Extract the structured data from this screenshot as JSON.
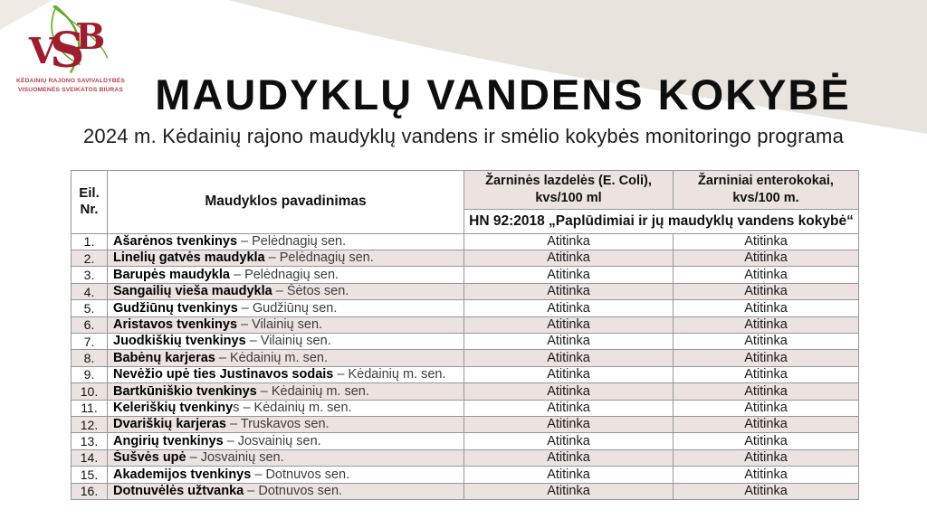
{
  "logo": {
    "monogram": "VSB",
    "org_line1": "KĖDAINIŲ RAJONO SAVIVALDYBĖS",
    "org_line2": "VISUOMENĖS SVEIKATOS BIURAS"
  },
  "header": {
    "title": "MAUDYKLŲ VANDENS KOKYBĖ",
    "subtitle": "2024 m. Kėdainių rajono maudyklų vandens ir smėlio kokybės monitoringo programa"
  },
  "table": {
    "columns": {
      "nr": "Eil.\nNr.",
      "name": "Maudyklos pavadinimas",
      "ecoli": "Žarninės lazdelės (E. Coli),\nkvs/100 ml",
      "entero": "Žarniniai enterokokai,\nkvs/100 m.",
      "subheader": "HN 92:2018 „Paplūdimiai ir jų maudyklų vandens kokybė“"
    },
    "rows": [
      {
        "nr": "1.",
        "name": "Ašarėnos tvenkinys",
        "rest": " – Pelėdnagių sen.",
        "ecoli": "Atitinka",
        "entero": "Atitinka"
      },
      {
        "nr": "2.",
        "name": "Linelių gatvės maudykla",
        "rest": " – Pelėdnagių sen.",
        "ecoli": "Atitinka",
        "entero": "Atitinka"
      },
      {
        "nr": "3.",
        "name": "Barupės maudykla",
        "rest": " – Pelėdnagių sen.",
        "ecoli": "Atitinka",
        "entero": "Atitinka"
      },
      {
        "nr": "4.",
        "name": "Sangailių vieša maudykla",
        "rest": " – Šėtos sen.",
        "ecoli": "Atitinka",
        "entero": "Atitinka"
      },
      {
        "nr": "5.",
        "name": "Gudžiūnų tvenkinys",
        "rest": " – Gudžiūnų sen.",
        "ecoli": "Atitinka",
        "entero": "Atitinka"
      },
      {
        "nr": "6.",
        "name": "Aristavos tvenkinys",
        "rest": " – Vilainių sen.",
        "ecoli": "Atitinka",
        "entero": "Atitinka"
      },
      {
        "nr": "7.",
        "name": "Juodkiškių tvenkinys",
        "rest": " – Vilainių sen.",
        "ecoli": "Atitinka",
        "entero": "Atitinka"
      },
      {
        "nr": "8.",
        "name": "Babėnų karjeras",
        "rest": " – Kėdainių m. sen.",
        "ecoli": "Atitinka",
        "entero": "Atitinka"
      },
      {
        "nr": "9.",
        "name": "Nevėžio upė ties Justinavos sodais",
        "rest": " – Kėdainių m. sen.",
        "ecoli": "Atitinka",
        "entero": "Atitinka"
      },
      {
        "nr": "10.",
        "name": "Bartkūniškio tvenkinys",
        "rest": " – Kėdainių m. sen.",
        "ecoli": "Atitinka",
        "entero": "Atitinka"
      },
      {
        "nr": "11.",
        "name": "Keleriškių tvenkiny",
        "rest": "s – Kėdainių m. sen.",
        "ecoli": "Atitinka",
        "entero": "Atitinka"
      },
      {
        "nr": "12.",
        "name": "Dvariškių karjeras",
        "rest": " – Truskavos sen.",
        "ecoli": "Atitinka",
        "entero": "Atitinka"
      },
      {
        "nr": "13.",
        "name": "Angirių tvenkinys",
        "rest": " – Josvainių sen.",
        "ecoli": "Atitinka",
        "entero": "Atitinka"
      },
      {
        "nr": "14.",
        "name": "Šušvės upė",
        "rest": " – Josvainių sen.",
        "ecoli": "Atitinka",
        "entero": "Atitinka"
      },
      {
        "nr": "15.",
        "name": "Akademijos tvenkinys",
        "rest": " – Dotnuvos sen.",
        "ecoli": "Atitinka",
        "entero": "Atitinka"
      },
      {
        "nr": "16.",
        "name": "Dotnuvėlės užtvanka",
        "rest": " – Dotnuvos sen.",
        "ecoli": "Atitinka",
        "entero": "Atitinka"
      }
    ]
  },
  "colors": {
    "logo_red": "#9e1e2d",
    "logo_green": "#5faa27",
    "org_text_red": "#bc404c",
    "row_alt_pink": "#ece3e0",
    "swoosh_beige": "#e9e3dd",
    "table_border_grey": "#969696"
  }
}
